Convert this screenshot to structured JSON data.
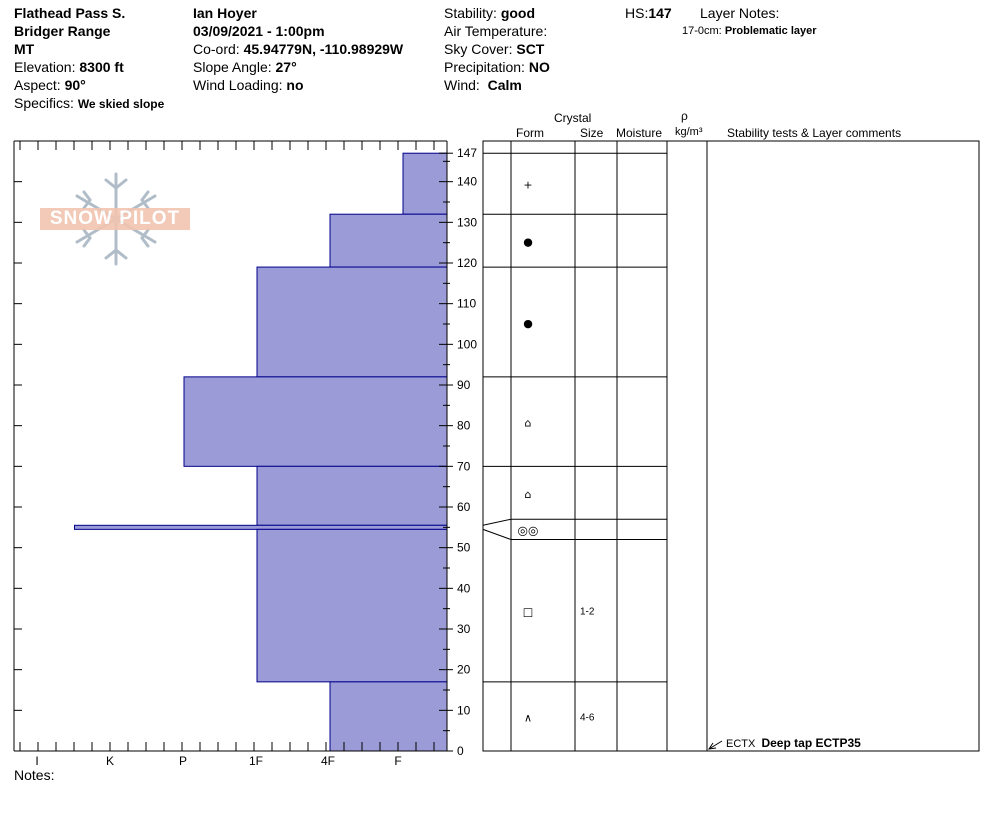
{
  "header": {
    "location": "Flathead Pass S.",
    "range": "Bridger Range",
    "state": "MT",
    "elevation_label": "Elevation:",
    "elevation": "8300 ft",
    "aspect_label": "Aspect:",
    "aspect": "90°",
    "specifics_label": "Specifics:",
    "specifics": "We skied slope",
    "observer": "Ian Hoyer",
    "datetime": "03/09/2021 - 1:00pm",
    "coord_label": "Co-ord:",
    "coord": "45.94779N, -110.98929W",
    "slope_label": "Slope Angle:",
    "slope": "27°",
    "wind_loading_label": "Wind Loading:",
    "wind_loading": "no",
    "stability_label": "Stability:",
    "stability": "good",
    "air_temp_label": "Air Temperature:",
    "sky_label": "Sky Cover:",
    "sky": "SCT",
    "precip_label": "Precipitation:",
    "precip": "NO",
    "wind_label": "Wind:",
    "wind": "Calm",
    "hs_label": "HS:",
    "hs": "147",
    "layer_notes_label": "Layer Notes:",
    "layer_note_range": "17-0cm:",
    "layer_note_text": "Problematic layer"
  },
  "table_headers": {
    "crystal": "Crystal",
    "form": "Form",
    "size": "Size",
    "moisture": "Moisture",
    "rho": "ρ",
    "density_unit": "kg/m³",
    "comments": "Stability tests & Layer comments"
  },
  "watermark": "SNOW PILOT",
  "notes_label": "Notes:",
  "test_result": {
    "code": "ECTX",
    "text": "Deep tap ECTP35"
  },
  "layers": [
    {
      "top": 147,
      "bottom": 132,
      "form": "+",
      "size": ""
    },
    {
      "top": 132,
      "bottom": 119,
      "form": "●",
      "size": ""
    },
    {
      "top": 119,
      "bottom": 92,
      "form": "●",
      "size": ""
    },
    {
      "top": 92,
      "bottom": 70,
      "form": "⌂",
      "size": ""
    },
    {
      "top": 70,
      "bottom": 57,
      "form": "⌂",
      "size": ""
    },
    {
      "top": 57,
      "bottom": 52,
      "form": "◎◎",
      "size": ""
    },
    {
      "top": 52,
      "bottom": 17,
      "form": "□",
      "size": "1-2"
    },
    {
      "top": 17,
      "bottom": 0,
      "form": "∧",
      "size": "4-6"
    }
  ],
  "chart_data": {
    "type": "bar",
    "title": "",
    "ylabel": "",
    "ylim": [
      0,
      150
    ],
    "x_categories": [
      "I",
      "K",
      "P",
      "1F",
      "4F",
      "F"
    ],
    "y_ticks": [
      0,
      10,
      20,
      30,
      40,
      50,
      60,
      70,
      80,
      90,
      100,
      110,
      120,
      130,
      140,
      147
    ],
    "hardness_profile": [
      {
        "from": 147,
        "to": 132,
        "hardness": "F"
      },
      {
        "from": 132,
        "to": 119,
        "hardness": "4F"
      },
      {
        "from": 119,
        "to": 92,
        "hardness": "1F"
      },
      {
        "from": 92,
        "to": 70,
        "hardness": "P"
      },
      {
        "from": 70,
        "to": 55.5,
        "hardness": "1F"
      },
      {
        "from": 55.5,
        "to": 54.5,
        "hardness": "I-K"
      },
      {
        "from": 54.5,
        "to": 17,
        "hardness": "1F"
      },
      {
        "from": 17,
        "to": 0,
        "hardness": "4F"
      }
    ],
    "hardness_index": {
      "I": 6,
      "I-K": 5.5,
      "K": 5,
      "P": 4,
      "1F": 3,
      "4F": 2,
      "F": 1
    },
    "fill_color": "#9b9bd7",
    "edge_color": "#00008b"
  }
}
